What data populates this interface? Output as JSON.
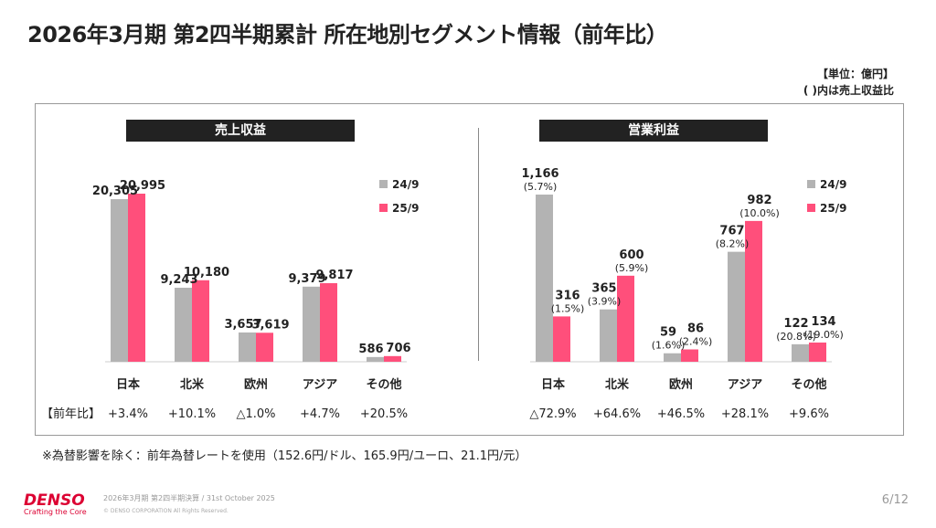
{
  "title": "2026年3月期 第2四半期累計 所在地別セグメント情報（前年比）",
  "unit_label": "【単位：億円】",
  "unit_note": "( )内は売上収益比",
  "note": "※為替影響を除く：前年為替レートを使用（152.6円/ドル、165.9円/ユーロ、21.1円/元）",
  "footer": {
    "logo": "DENSO",
    "tagline": "Crafting the Core",
    "doc": "2026年3月期 第2四半期決算 / 31st October 2025",
    "copyright": "© DENSO CORPORATION All Rights Reserved.",
    "page": "6/12"
  },
  "colors": {
    "prev": "#b3b3b3",
    "curr": "#ff4f7b"
  },
  "chart_data": [
    {
      "type": "bar",
      "title": "売上収益",
      "categories": [
        "日本",
        "北米",
        "欧州",
        "アジア",
        "その他"
      ],
      "series": [
        {
          "name": "24/9",
          "values": [
            20305,
            9243,
            3657,
            9379,
            586
          ]
        },
        {
          "name": "25/9",
          "values": [
            20995,
            10180,
            3619,
            9817,
            706
          ]
        }
      ],
      "labels": [
        [
          "20,305",
          "9,243",
          "3,657",
          "9,379",
          "586"
        ],
        [
          "20,995",
          "10,180",
          "3,619",
          "9,817",
          "706"
        ]
      ],
      "yoy_label": "【前年比】",
      "yoy": [
        "+3.4%",
        "+10.1%",
        "△1.0%",
        "+4.7%",
        "+20.5%"
      ],
      "legend": "right"
    },
    {
      "type": "bar",
      "title": "営業利益",
      "categories": [
        "日本",
        "北米",
        "欧州",
        "アジア",
        "その他"
      ],
      "series": [
        {
          "name": "24/9",
          "values": [
            1166,
            365,
            59,
            767,
            122
          ],
          "margin": [
            "(5.7%)",
            "(3.9%)",
            "(1.6%)",
            "(8.2%)",
            "(20.8%)"
          ]
        },
        {
          "name": "25/9",
          "values": [
            316,
            600,
            86,
            982,
            134
          ],
          "margin": [
            "(1.5%)",
            "(5.9%)",
            "(2.4%)",
            "(10.0%)",
            "(19.0%)"
          ]
        }
      ],
      "labels": [
        [
          "1,166",
          "365",
          "59",
          "767",
          "122"
        ],
        [
          "316",
          "600",
          "86",
          "982",
          "134"
        ]
      ],
      "yoy": [
        "△72.9%",
        "+64.6%",
        "+46.5%",
        "+28.1%",
        "+9.6%"
      ],
      "legend": "right"
    }
  ]
}
